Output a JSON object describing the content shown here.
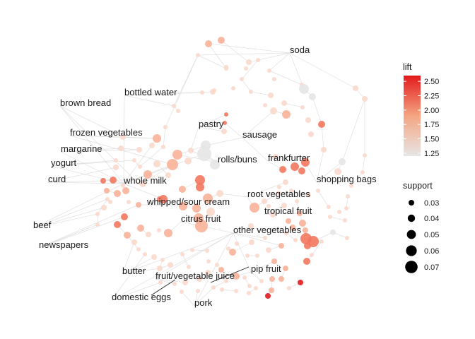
{
  "chart_data": {
    "type": "network",
    "nodes": [
      {
        "label": "soda"
      },
      {
        "label": "bottled water"
      },
      {
        "label": "brown bread"
      },
      {
        "label": "pastry"
      },
      {
        "label": "sausage"
      },
      {
        "label": "frozen vegetables"
      },
      {
        "label": "margarine"
      },
      {
        "label": "yogurt"
      },
      {
        "label": "rolls/buns"
      },
      {
        "label": "frankfurter"
      },
      {
        "label": "curd"
      },
      {
        "label": "whole milk"
      },
      {
        "label": "shopping bags"
      },
      {
        "label": "root vegetables"
      },
      {
        "label": "whipped/sour cream"
      },
      {
        "label": "tropical fruit"
      },
      {
        "label": "citrus fruit"
      },
      {
        "label": "beef"
      },
      {
        "label": "other vegetables"
      },
      {
        "label": "newspapers"
      },
      {
        "label": "pip fruit"
      },
      {
        "label": "butter"
      },
      {
        "label": "fruit/vegetable juice"
      },
      {
        "label": "domestic eggs"
      },
      {
        "label": "pork"
      }
    ],
    "legend_lift": {
      "title": "lift",
      "ticks": [
        "2.50",
        "2.25",
        "2.00",
        "1.75",
        "1.50",
        "1.25"
      ],
      "range": [
        1.2,
        2.6
      ],
      "color_low": "#e6e6e6",
      "color_high": "#e31a1c"
    },
    "legend_support": {
      "title": "support",
      "ticks": [
        "0.03",
        "0.04",
        "0.05",
        "0.06",
        "0.07"
      ]
    }
  }
}
